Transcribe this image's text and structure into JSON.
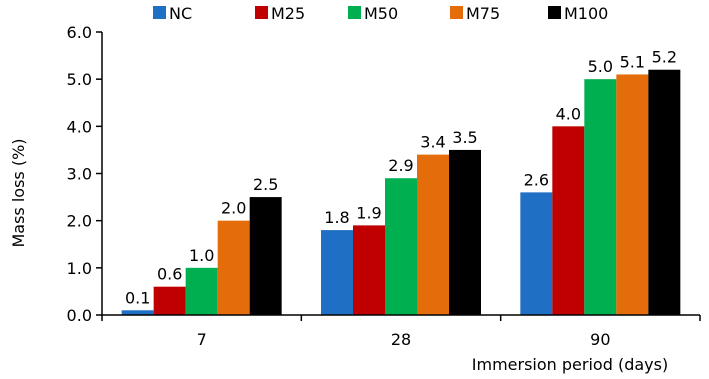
{
  "chart_data": {
    "type": "bar",
    "categories": [
      "7",
      "28",
      "90"
    ],
    "series": [
      {
        "name": "NC",
        "color": "#1f6fc5",
        "values": [
          0.1,
          1.8,
          2.6
        ]
      },
      {
        "name": "M25",
        "color": "#c00000",
        "values": [
          0.6,
          1.9,
          4.0
        ]
      },
      {
        "name": "M50",
        "color": "#00b050",
        "values": [
          1.0,
          2.9,
          5.0
        ]
      },
      {
        "name": "M75",
        "color": "#e46c0a",
        "values": [
          2.0,
          3.4,
          5.1
        ]
      },
      {
        "name": "M100",
        "color": "#000000",
        "values": [
          2.5,
          3.5,
          5.2
        ]
      }
    ],
    "data_labels": [
      [
        "0.1",
        "1.8",
        "2.6"
      ],
      [
        "0.6",
        "1.9",
        "4.0"
      ],
      [
        "1.0",
        "2.9",
        "5.0"
      ],
      [
        "2.0",
        "3.4",
        "5.1"
      ],
      [
        "2.5",
        "3.5",
        "5.2"
      ]
    ],
    "xlabel": "Immersion period (days)",
    "ylabel": "Mass loss (%)",
    "ylim": [
      0,
      6
    ],
    "yticks": [
      "0.0",
      "1.0",
      "2.0",
      "3.0",
      "4.0",
      "5.0",
      "6.0"
    ],
    "grid": false,
    "legend_position": "top"
  }
}
